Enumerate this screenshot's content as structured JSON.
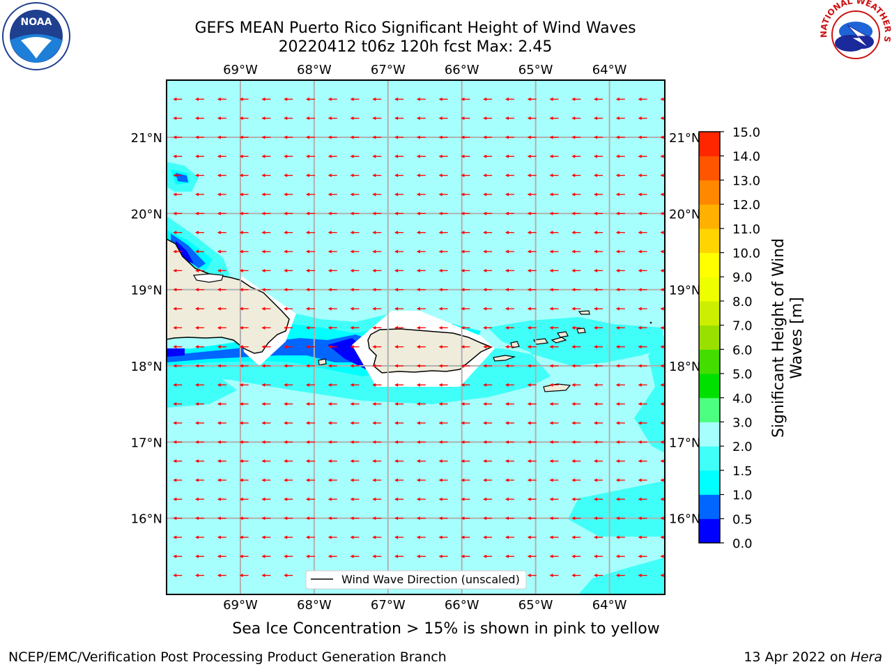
{
  "title_line1": "GEFS MEAN Puerto Rico Significant Height of Wind Waves",
  "title_line2": "20220412 t06z 120h fcst   Max: 2.45",
  "map": {
    "lon_range": [
      -70.0,
      -63.25
    ],
    "lat_range": [
      15.0,
      21.75
    ],
    "lon_ticks": [
      -69,
      -68,
      -67,
      -66,
      -65,
      -64
    ],
    "lon_labels": [
      "69°W",
      "68°W",
      "67°W",
      "66°W",
      "65°W",
      "64°W"
    ],
    "lat_ticks": [
      16,
      17,
      18,
      19,
      20,
      21
    ],
    "lat_labels": [
      "16°N",
      "17°N",
      "18°N",
      "19°N",
      "20°N",
      "21°N"
    ],
    "grid": true,
    "ocean_color": "#a6fffd",
    "land_color": "#efecdb",
    "arrow_color": "#ff0000",
    "arrow_direction": "westward"
  },
  "legend": {
    "label": "Wind Wave Direction (unscaled)",
    "position": "lower-center"
  },
  "colorbar": {
    "label": "Significant Height of Wind Waves [m]",
    "tick_labels": [
      "0.0",
      "0.5",
      "1.0",
      "1.5",
      "2.0",
      "3.0",
      "4.0",
      "5.0",
      "6.0",
      "7.0",
      "8.0",
      "9.0",
      "10.0",
      "11.0",
      "12.0",
      "13.0",
      "14.0",
      "15.0"
    ],
    "colors": [
      "#0000ff",
      "#0066ff",
      "#00ffff",
      "#40fff8",
      "#a6fffd",
      "#4dff80",
      "#00e000",
      "#44dd00",
      "#99e000",
      "#ccee00",
      "#eeff00",
      "#ffff00",
      "#ffd400",
      "#ffb000",
      "#ff8800",
      "#ff5500",
      "#ff2600"
    ]
  },
  "ice_note": "Sea Ice Concentration > 15% is shown in pink to yellow",
  "footer_left": "NCEP/EMC/Verification Post Processing Product Generation Branch",
  "footer_date": "13 Apr 2022 on",
  "footer_host": "Hera",
  "logos": {
    "left": "NOAA",
    "right": "NATIONAL WEATHER SERVICE"
  }
}
